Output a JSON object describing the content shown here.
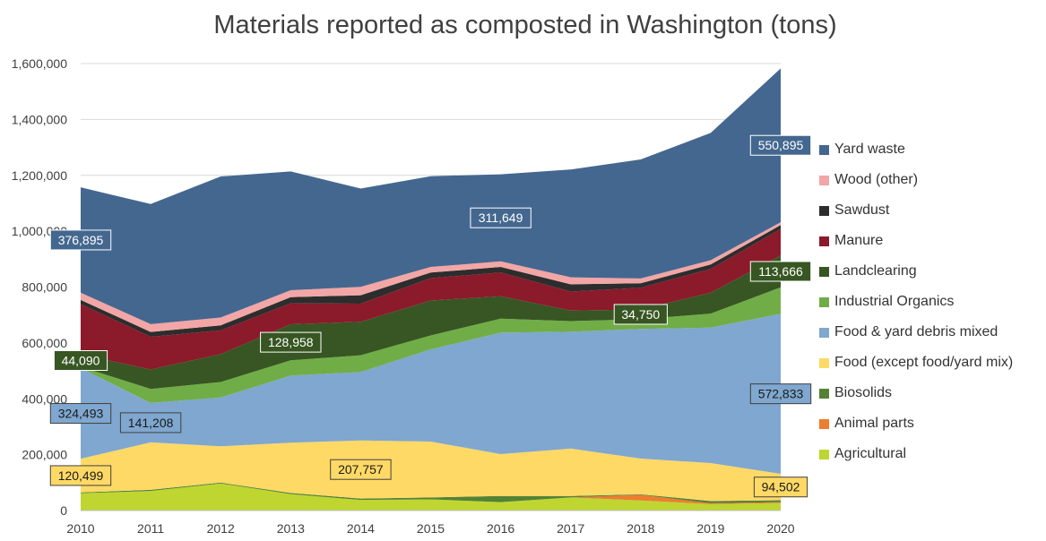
{
  "chart_data": {
    "type": "area",
    "stacked": true,
    "title": "Materials reported as composted in Washington (tons)",
    "x": [
      "2010",
      "2011",
      "2012",
      "2013",
      "2014",
      "2015",
      "2016",
      "2017",
      "2018",
      "2019",
      "2020"
    ],
    "ylim": [
      0,
      1600000
    ],
    "yticks": [
      0,
      200000,
      400000,
      600000,
      800000,
      1000000,
      1200000,
      1400000,
      1600000
    ],
    "ytick_labels": [
      "0",
      "200,000",
      "400,000",
      "600,000",
      "800,000",
      "1,000,000",
      "1,200,000",
      "1,400,000",
      "1,600,000"
    ],
    "grid": true,
    "legend_position": "right",
    "series": [
      {
        "name": "Agricultural",
        "color": "#BFD630",
        "values": [
          62000,
          70000,
          97000,
          59000,
          38000,
          40000,
          30000,
          47000,
          36000,
          23000,
          27000
        ]
      },
      {
        "name": "Animal parts",
        "color": "#ED7D31",
        "values": [
          0,
          0,
          0,
          0,
          0,
          0,
          0,
          0,
          20000,
          3000,
          3000
        ]
      },
      {
        "name": "Biosolids",
        "color": "#548235",
        "values": [
          3000,
          4000,
          3000,
          4000,
          5000,
          7000,
          22000,
          5000,
          2000,
          8000,
          7000
        ]
      },
      {
        "name": "Food (except food/yard mix)",
        "color": "#FFD966",
        "values": [
          120499,
          170000,
          130000,
          180000,
          207757,
          200000,
          150000,
          170000,
          128000,
          136000,
          94502
        ]
      },
      {
        "name": "Food & yard debris mixed",
        "color": "#7FA7CF",
        "values": [
          324493,
          141208,
          175000,
          240000,
          245000,
          330000,
          435000,
          418000,
          464000,
          485000,
          572833
        ]
      },
      {
        "name": "Industrial Organics",
        "color": "#70AD47",
        "values": [
          5000,
          50000,
          55000,
          55000,
          60000,
          50000,
          50000,
          38000,
          35000,
          50000,
          95000
        ]
      },
      {
        "name": "Landclearing",
        "color": "#375623",
        "values": [
          44090,
          70000,
          100000,
          128958,
          120000,
          125000,
          80000,
          38000,
          34750,
          75000,
          113666
        ]
      },
      {
        "name": "Manure",
        "color": "#8B1A2B",
        "values": [
          180000,
          117000,
          85000,
          75000,
          65000,
          80000,
          85000,
          68000,
          78000,
          85000,
          95000
        ]
      },
      {
        "name": "Sawdust",
        "color": "#2D2D2D",
        "values": [
          15000,
          17000,
          18000,
          22000,
          30000,
          20000,
          20000,
          26000,
          16000,
          16000,
          14000
        ]
      },
      {
        "name": "Wood (other)",
        "color": "#F2A6A6",
        "values": [
          26000,
          28000,
          28000,
          25000,
          30000,
          20000,
          20000,
          25000,
          17000,
          15000,
          10000
        ]
      },
      {
        "name": "Yard waste",
        "color": "#44678F",
        "values": [
          376895,
          430000,
          505000,
          425000,
          352000,
          325000,
          311649,
          386000,
          426000,
          456000,
          550895
        ]
      }
    ],
    "data_labels": [
      {
        "series": "Yard waste",
        "year": "2010",
        "text": "376,895"
      },
      {
        "series": "Yard waste",
        "year": "2016",
        "text": "311,649"
      },
      {
        "series": "Yard waste",
        "year": "2020",
        "text": "550,895"
      },
      {
        "series": "Landclearing",
        "year": "2010",
        "text": "44,090"
      },
      {
        "series": "Landclearing",
        "year": "2013",
        "text": "128,958"
      },
      {
        "series": "Landclearing",
        "year": "2018",
        "text": "34,750"
      },
      {
        "series": "Landclearing",
        "year": "2020",
        "text": "113,666"
      },
      {
        "series": "Food & yard debris mixed",
        "year": "2010",
        "text": "324,493"
      },
      {
        "series": "Food & yard debris mixed",
        "year": "2011",
        "text": "141,208"
      },
      {
        "series": "Food & yard debris mixed",
        "year": "2020",
        "text": "572,833"
      },
      {
        "series": "Food (except food/yard mix)",
        "year": "2010",
        "text": "120,499"
      },
      {
        "series": "Food (except food/yard mix)",
        "year": "2014",
        "text": "207,757"
      },
      {
        "series": "Food (except food/yard mix)",
        "year": "2020",
        "text": "94,502"
      }
    ]
  }
}
